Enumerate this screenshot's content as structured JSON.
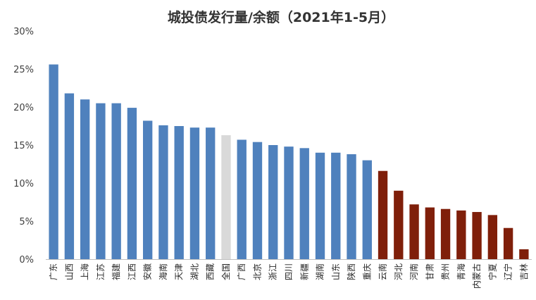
{
  "chart_data": {
    "type": "bar",
    "title": "城投债发行量/余额（2021年1-5月）",
    "xlabel": "",
    "ylabel": "",
    "ylim": [
      0,
      0.3
    ],
    "yticks": [
      "0%",
      "5%",
      "10%",
      "15%",
      "20%",
      "25%",
      "30%"
    ],
    "grid": false,
    "legend": "none",
    "colors": {
      "above": "#4F81BD",
      "national": "#D9D9D9",
      "below": "#7F1F0A"
    },
    "categories": [
      "广东",
      "山西",
      "上海",
      "江苏",
      "福建",
      "江西",
      "安徽",
      "海南",
      "天津",
      "湖北",
      "西藏",
      "全国",
      "广西",
      "北京",
      "浙江",
      "四川",
      "新疆",
      "湖南",
      "山东",
      "陕西",
      "重庆",
      "云南",
      "河北",
      "河南",
      "甘肃",
      "贵州",
      "青海",
      "内蒙古",
      "宁夏",
      "辽宁",
      "吉林"
    ],
    "values": [
      0.256,
      0.218,
      0.21,
      0.205,
      0.205,
      0.199,
      0.182,
      0.176,
      0.175,
      0.173,
      0.173,
      0.163,
      0.157,
      0.154,
      0.15,
      0.148,
      0.146,
      0.14,
      0.14,
      0.138,
      0.13,
      0.116,
      0.09,
      0.072,
      0.068,
      0.066,
      0.064,
      0.062,
      0.058,
      0.041,
      0.013
    ],
    "groups": [
      "above",
      "above",
      "above",
      "above",
      "above",
      "above",
      "above",
      "above",
      "above",
      "above",
      "above",
      "national",
      "above",
      "above",
      "above",
      "above",
      "above",
      "above",
      "above",
      "above",
      "above",
      "below",
      "below",
      "below",
      "below",
      "below",
      "below",
      "below",
      "below",
      "below",
      "below"
    ]
  }
}
